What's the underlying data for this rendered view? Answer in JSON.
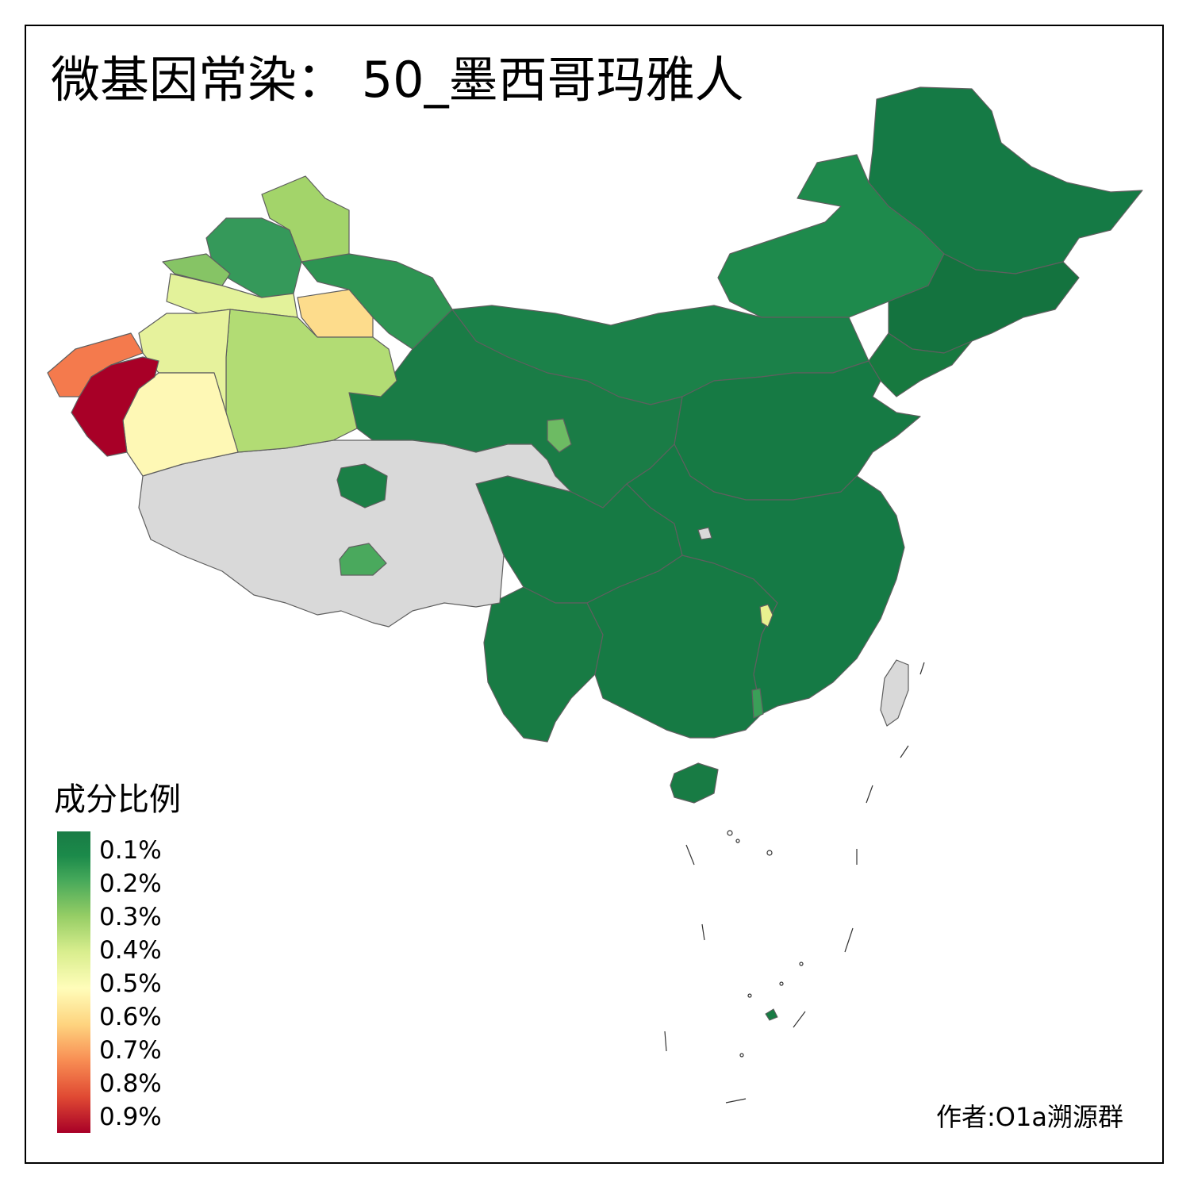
{
  "title": "微基因常染： 50_墨西哥玛雅人",
  "legend": {
    "title": "成分比例",
    "labels": [
      "0.1%",
      "0.2%",
      "0.3%",
      "0.4%",
      "0.5%",
      "0.6%",
      "0.7%",
      "0.8%",
      "0.9%"
    ]
  },
  "credit": "作者:O1a溯源群",
  "colors": {
    "low": "#1a7b45",
    "high": "#a80027",
    "no_data": "#d9d9d9",
    "border": "#666666"
  }
}
